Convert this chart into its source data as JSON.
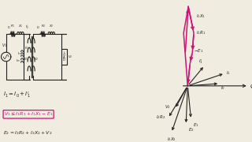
{
  "bg_color": "#f0ece0",
  "circuit_color": "#222222",
  "magenta_color": "#cc1177",
  "eq1": "I_1 = I_0 + I_1'",
  "eq2": "V_1 \\leq I_1R_1 + I_1X_1 - E_1",
  "eq3": "E_2 = I_2R_2 + I_2X_2 + V_2",
  "phi_label": "φ",
  "phasor_xlim": [
    -1.3,
    1.9
  ],
  "phasor_ylim": [
    -1.7,
    2.6
  ]
}
